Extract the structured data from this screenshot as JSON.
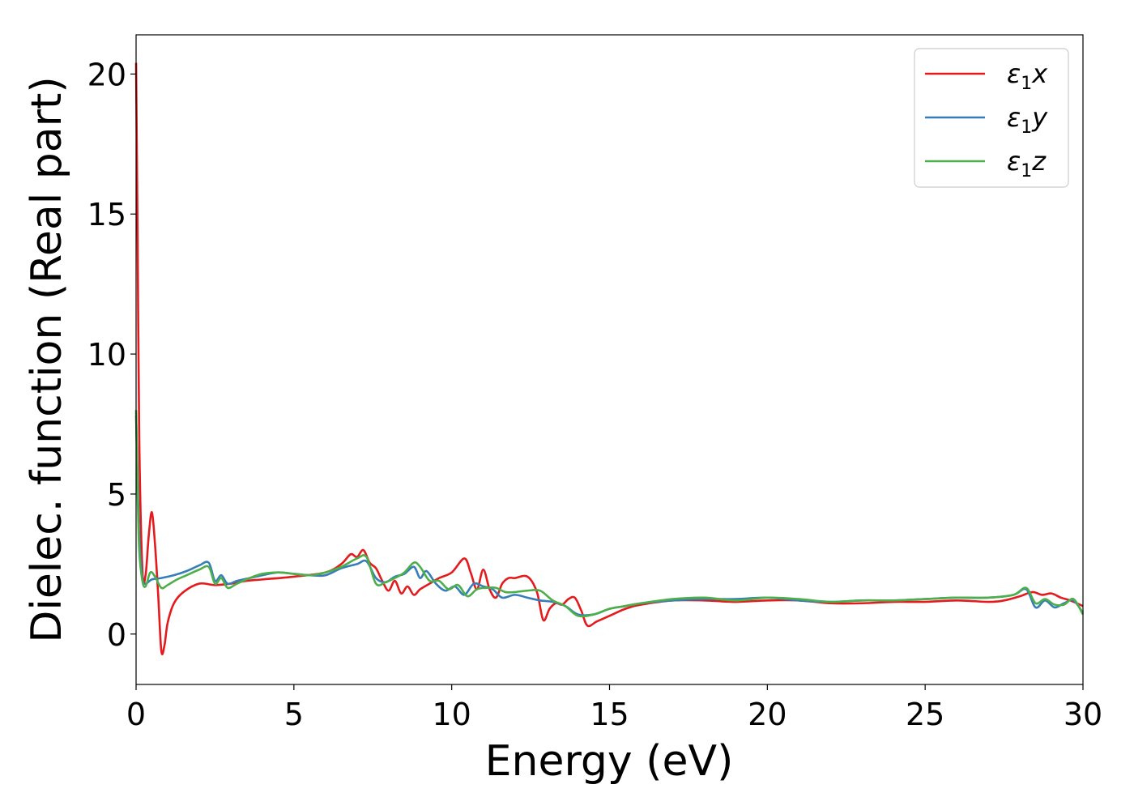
{
  "chart_data": {
    "type": "line",
    "title": "",
    "xlabel": "Energy (eV)",
    "ylabel": "Dielec. function (Real part)",
    "xlim": [
      0,
      30
    ],
    "ylim": [
      -1.8,
      21.4
    ],
    "xticks": [
      "0",
      "5",
      "10",
      "15",
      "20",
      "25",
      "30"
    ],
    "yticks": [
      "0",
      "5",
      "10",
      "15",
      "20"
    ],
    "grid": false,
    "legend": {
      "position": "top-right"
    },
    "series": [
      {
        "name": "ε1x",
        "legend_main": "ε",
        "legend_sub": "1",
        "legend_axis": "x",
        "color": "#e41a1c",
        "x": [
          0,
          0.05,
          0.1,
          0.2,
          0.3,
          0.4,
          0.5,
          0.6,
          0.7,
          0.8,
          0.9,
          1.0,
          1.2,
          1.5,
          2.0,
          2.5,
          3.0,
          3.5,
          4.0,
          5.0,
          6.0,
          6.5,
          6.8,
          7.0,
          7.2,
          7.4,
          7.6,
          7.8,
          8.0,
          8.2,
          8.4,
          8.6,
          8.8,
          9.0,
          9.3,
          9.6,
          10.0,
          10.4,
          10.6,
          10.8,
          11.0,
          11.2,
          11.4,
          11.6,
          11.8,
          12.0,
          12.4,
          12.7,
          12.9,
          13.1,
          13.3,
          13.5,
          13.7,
          13.9,
          14.1,
          14.3,
          14.6,
          15.0,
          15.5,
          16.0,
          17.0,
          18.0,
          19.0,
          20.0,
          21.0,
          22.0,
          23.0,
          24.0,
          25.0,
          26.0,
          27.0,
          27.5,
          28.0,
          28.4,
          28.7,
          29.0,
          29.3,
          29.6,
          30.0
        ],
        "values": [
          20.4,
          14.0,
          7.0,
          2.3,
          2.1,
          3.5,
          4.35,
          3.2,
          1.4,
          -0.6,
          -0.4,
          0.4,
          1.1,
          1.5,
          1.8,
          1.75,
          1.8,
          1.9,
          1.95,
          2.05,
          2.2,
          2.5,
          2.85,
          2.75,
          3.0,
          2.55,
          2.35,
          1.9,
          1.55,
          1.9,
          1.45,
          1.7,
          1.4,
          1.6,
          1.8,
          2.0,
          2.2,
          2.7,
          2.2,
          1.6,
          2.3,
          1.6,
          1.3,
          1.8,
          2.0,
          2.0,
          2.05,
          1.5,
          0.5,
          0.9,
          1.1,
          1.05,
          1.25,
          1.3,
          0.85,
          0.3,
          0.45,
          0.65,
          0.9,
          1.05,
          1.2,
          1.2,
          1.15,
          1.2,
          1.2,
          1.1,
          1.1,
          1.15,
          1.15,
          1.2,
          1.15,
          1.2,
          1.35,
          1.5,
          1.4,
          1.45,
          1.3,
          1.2,
          1.0
        ]
      },
      {
        "name": "ε1y",
        "legend_main": "ε",
        "legend_sub": "1",
        "legend_axis": "y",
        "color": "#377eb8",
        "x": [
          0,
          0.05,
          0.1,
          0.2,
          0.3,
          0.5,
          0.8,
          1.2,
          1.6,
          2.0,
          2.3,
          2.5,
          2.7,
          2.9,
          3.2,
          3.6,
          4.0,
          4.5,
          5.0,
          5.5,
          6.0,
          6.5,
          7.0,
          7.3,
          7.6,
          7.9,
          8.2,
          8.5,
          8.8,
          9.0,
          9.2,
          9.5,
          9.8,
          10.1,
          10.4,
          10.7,
          11.0,
          11.3,
          11.6,
          12.0,
          12.4,
          12.8,
          13.2,
          13.6,
          14.0,
          14.5,
          15.0,
          15.5,
          16.0,
          17.0,
          18.0,
          19.0,
          20.0,
          21.0,
          22.0,
          23.0,
          24.0,
          25.0,
          26.0,
          27.0,
          27.8,
          28.2,
          28.5,
          28.8,
          29.1,
          29.4,
          29.7,
          30.0
        ],
        "values": [
          7.8,
          5.5,
          3.5,
          2.0,
          1.8,
          1.95,
          2.0,
          2.1,
          2.25,
          2.45,
          2.55,
          1.9,
          2.1,
          1.8,
          1.9,
          2.0,
          2.1,
          2.2,
          2.15,
          2.1,
          2.1,
          2.35,
          2.5,
          2.6,
          2.0,
          1.85,
          2.05,
          2.15,
          2.4,
          2.0,
          2.25,
          1.8,
          1.55,
          1.7,
          1.4,
          1.8,
          1.7,
          1.6,
          1.3,
          1.4,
          1.3,
          1.2,
          1.15,
          1.0,
          0.7,
          0.7,
          0.9,
          1.0,
          1.1,
          1.2,
          1.25,
          1.25,
          1.3,
          1.2,
          1.15,
          1.2,
          1.2,
          1.25,
          1.3,
          1.3,
          1.4,
          1.6,
          0.95,
          1.2,
          0.95,
          1.1,
          1.2,
          0.75
        ]
      },
      {
        "name": "ε1z",
        "legend_main": "ε",
        "legend_sub": "1",
        "legend_axis": "z",
        "color": "#4daf4a",
        "x": [
          0,
          0.05,
          0.1,
          0.2,
          0.3,
          0.45,
          0.6,
          0.8,
          1.0,
          1.3,
          1.6,
          2.0,
          2.3,
          2.5,
          2.7,
          2.9,
          3.2,
          3.6,
          4.0,
          4.5,
          5.0,
          5.5,
          6.0,
          6.5,
          7.0,
          7.3,
          7.6,
          7.9,
          8.2,
          8.5,
          8.8,
          9.0,
          9.3,
          9.6,
          9.9,
          10.2,
          10.5,
          10.8,
          11.1,
          11.4,
          11.7,
          12.0,
          12.4,
          12.8,
          13.2,
          13.6,
          14.0,
          14.5,
          15.0,
          15.5,
          16.0,
          17.0,
          18.0,
          19.0,
          20.0,
          21.0,
          22.0,
          23.0,
          24.0,
          25.0,
          26.0,
          27.0,
          27.8,
          28.2,
          28.5,
          28.8,
          29.1,
          29.4,
          29.7,
          30.0
        ],
        "values": [
          8.0,
          5.0,
          3.0,
          1.9,
          1.7,
          2.2,
          2.05,
          1.65,
          1.75,
          1.95,
          2.1,
          2.3,
          2.4,
          1.8,
          2.0,
          1.65,
          1.8,
          2.0,
          2.15,
          2.2,
          2.15,
          2.1,
          2.2,
          2.4,
          2.7,
          2.75,
          1.8,
          1.85,
          2.0,
          2.2,
          2.55,
          2.4,
          1.9,
          1.9,
          1.6,
          1.75,
          1.35,
          1.6,
          1.65,
          1.65,
          1.5,
          1.5,
          1.55,
          1.55,
          1.2,
          1.0,
          0.65,
          0.7,
          0.9,
          1.0,
          1.1,
          1.25,
          1.3,
          1.2,
          1.3,
          1.25,
          1.15,
          1.2,
          1.2,
          1.25,
          1.3,
          1.3,
          1.4,
          1.65,
          1.1,
          1.25,
          1.05,
          1.05,
          1.25,
          0.7
        ]
      }
    ]
  }
}
